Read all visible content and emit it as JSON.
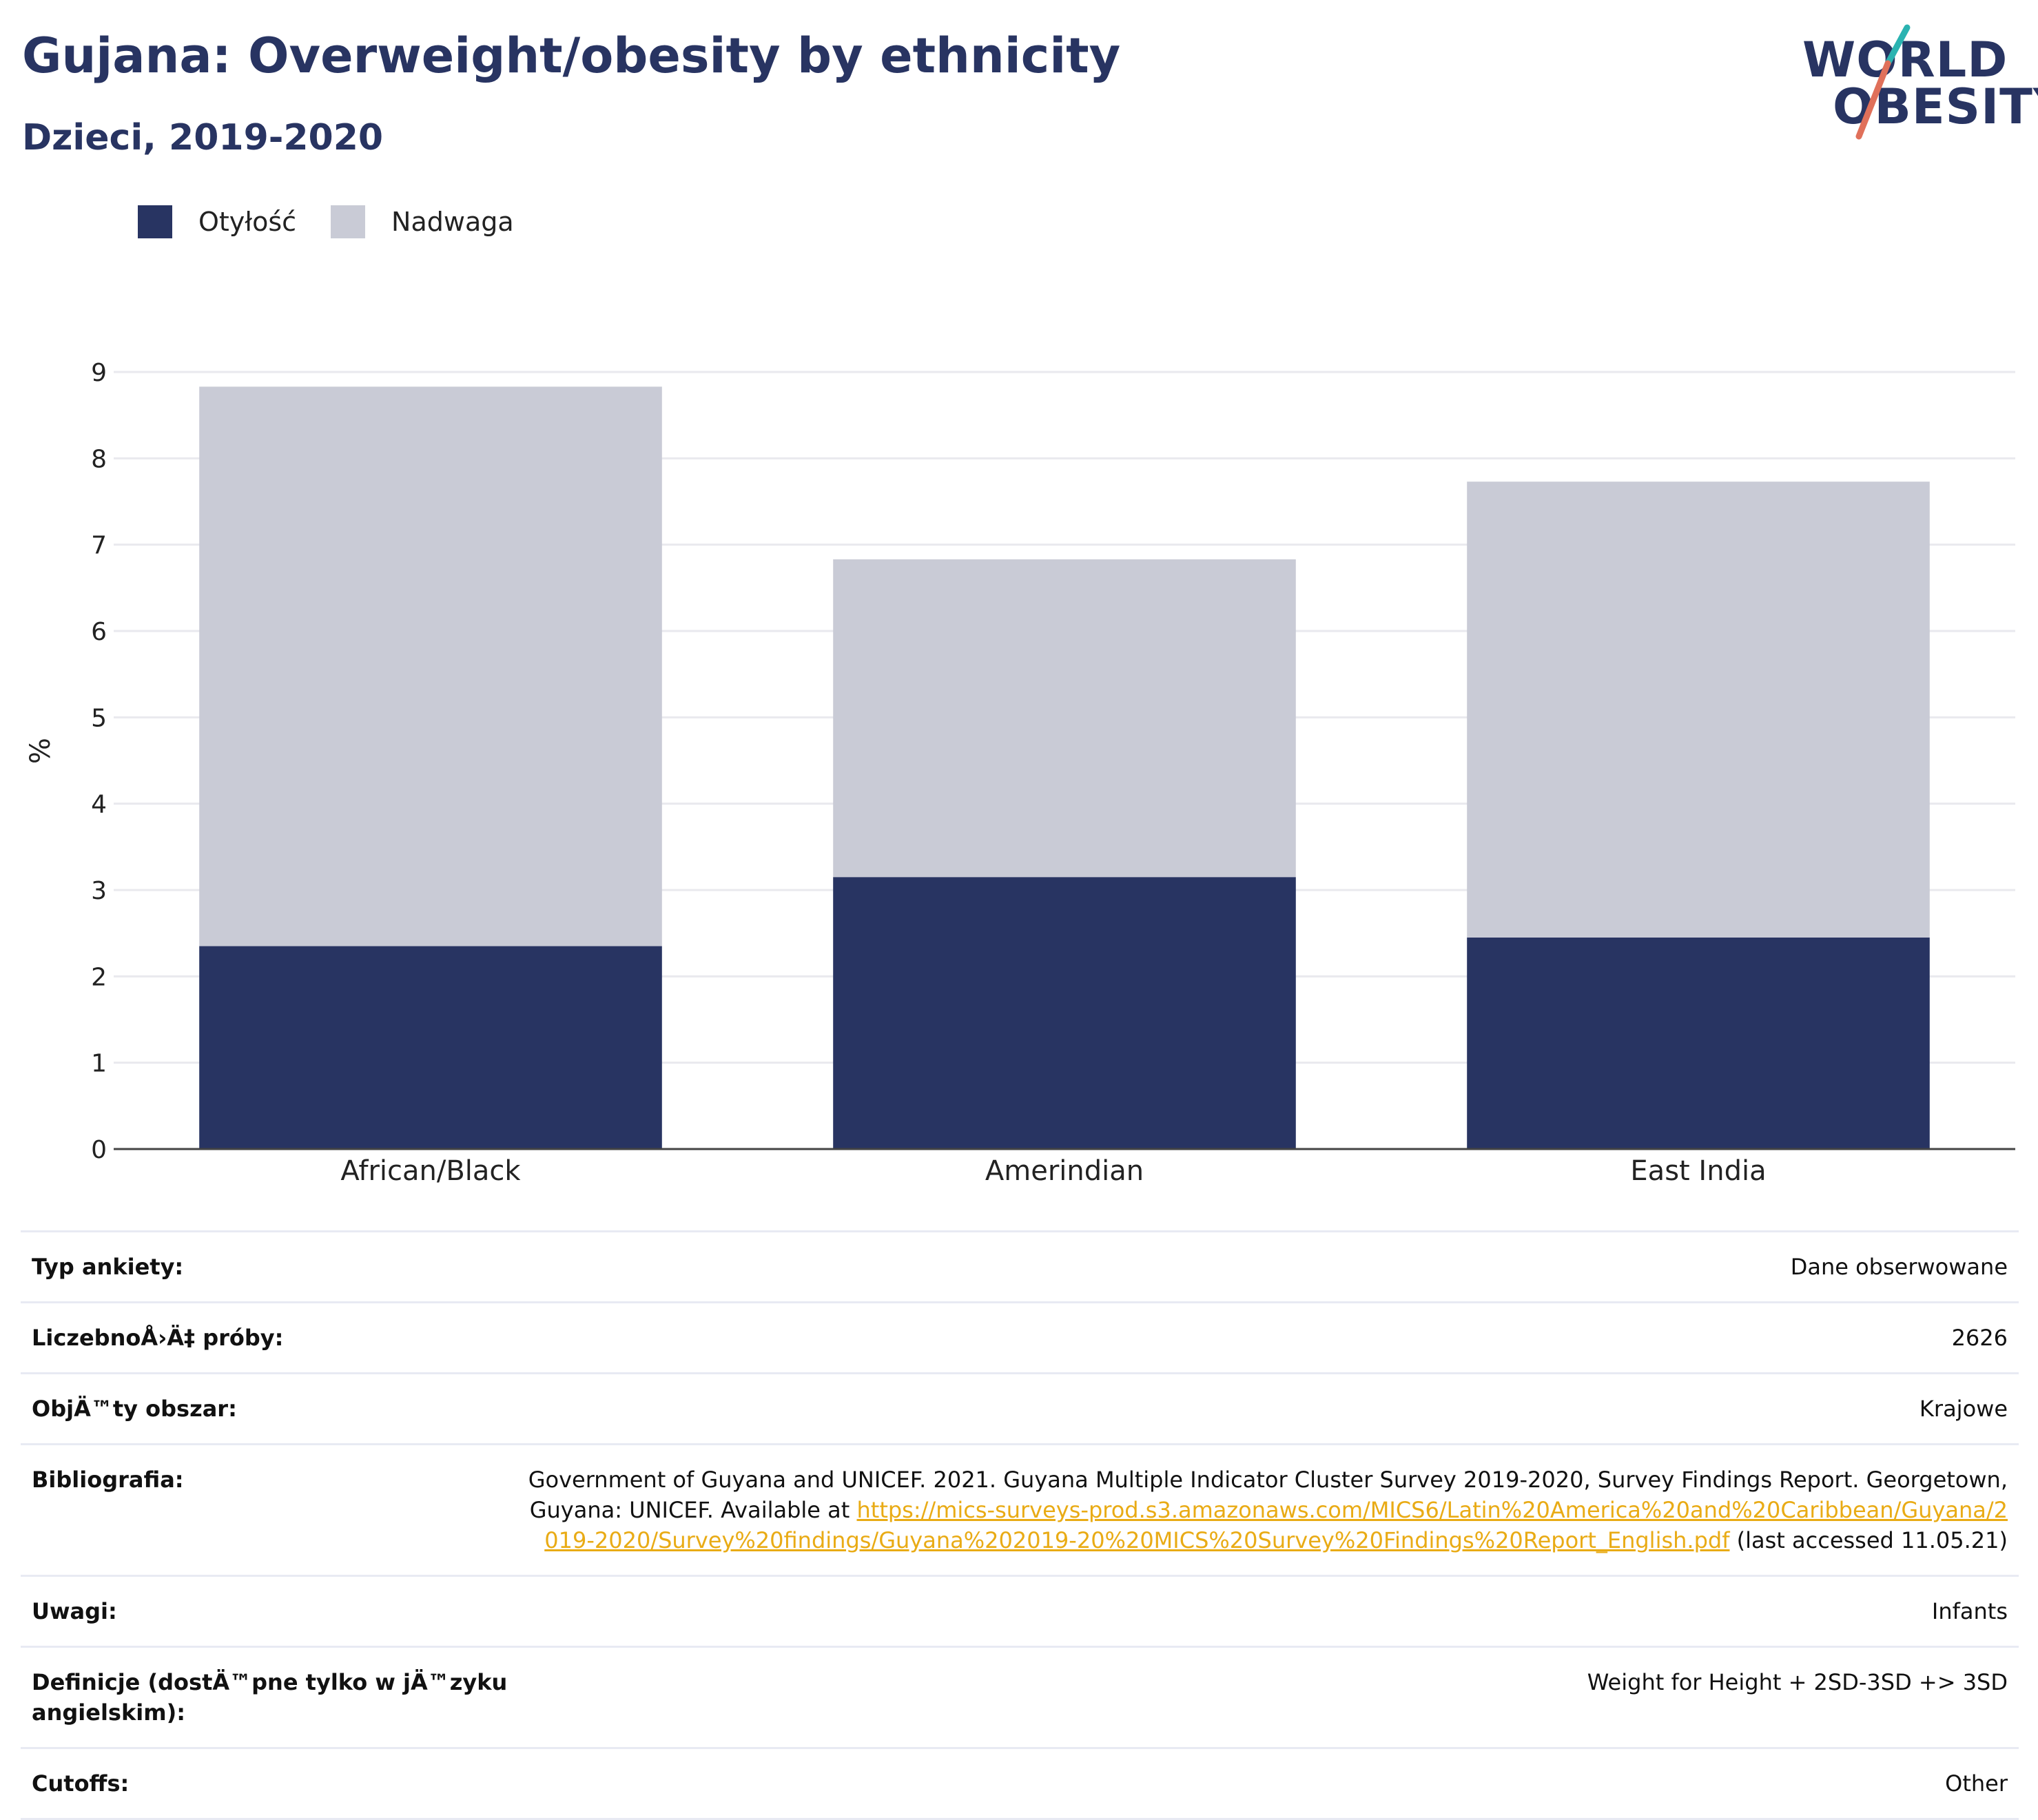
{
  "header": {
    "title": "Gujana: Overweight/obesity by ethnicity",
    "subtitle": "Dzieci, 2019-2020"
  },
  "logo": {
    "line1": "WORLD",
    "line2": "OBESITY"
  },
  "legend": [
    {
      "label": "Otyłość",
      "color": "#283462"
    },
    {
      "label": "Nadwaga",
      "color": "#c9cbd6"
    }
  ],
  "chart_data": {
    "type": "bar",
    "stacked": true,
    "categories": [
      "African/Black",
      "Amerindian",
      "East India"
    ],
    "series": [
      {
        "name": "Otyłość",
        "values": [
          2.35,
          3.15,
          2.45
        ],
        "color": "#283462"
      },
      {
        "name": "Nadwaga",
        "values": [
          6.48,
          3.68,
          5.28
        ],
        "color": "#c9cbd6"
      }
    ],
    "ylabel": "%",
    "xlabel": "",
    "ylim": [
      0,
      9
    ],
    "yticks": [
      0,
      1,
      2,
      3,
      4,
      5,
      6,
      7,
      8,
      9
    ],
    "grid": true,
    "legend_position": "top-left"
  },
  "meta": {
    "survey_type_label": "Typ ankiety:",
    "survey_type_value": "Dane obserwowane",
    "sample_size_label": "LiczebnoÅ›Ä‡ próby:",
    "sample_size_value": "2626",
    "area_label": "ObjÄ™ty obszar:",
    "area_value": "Krajowe",
    "bibliography_label": "Bibliografia:",
    "bibliography_text": "Government of Guyana and UNICEF. 2021. Guyana Multiple Indicator Cluster Survey 2019-2020, Survey Findings Report. Georgetown, Guyana: UNICEF. Available at ",
    "bibliography_link": "https://mics-surveys-prod.s3.amazonaws.com/MICS6/Latin%20America%20and%20Caribbean/Guyana/2019-2020/Survey%20findings/Guyana%202019-20%20MICS%20Survey%20Findings%20Report_English.pdf",
    "bibliography_suffix": " (last accessed 11.05.21)",
    "notes_label": "Uwagi:",
    "notes_value": "Infants",
    "definitions_label": "Definicje (dostÄ™pne tylko w jÄ™zyku angielskim):",
    "definitions_value": "Weight for Height + 2SD-3SD +> 3SD",
    "cutoffs_label": "Cutoffs:",
    "cutoffs_value": "Other"
  }
}
